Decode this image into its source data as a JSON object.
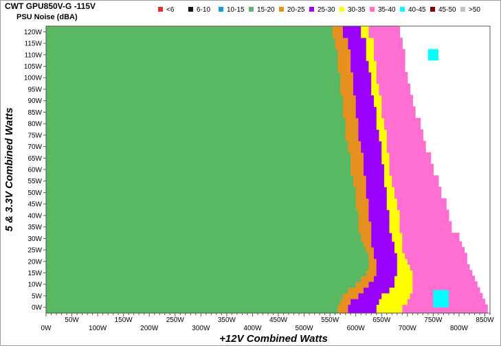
{
  "header": {
    "title": "CWT GPU850V-G -115V",
    "subtitle": "PSU Noise (dBA)"
  },
  "chart_data": {
    "type": "heatmap",
    "title": "CWT GPU850V-G -115V",
    "subtitle": "PSU Noise (dBA)",
    "xlabel": "+12V Combined Watts",
    "ylabel": "5 & 3.3V Combined Watts",
    "xlim": [
      0,
      860
    ],
    "ylim": [
      -2.5,
      122.5
    ],
    "x_ticks_top_row": [
      "0W",
      "100W",
      "200W",
      "300W",
      "400W",
      "500W",
      "600W",
      "700W",
      "800W"
    ],
    "x_ticks_bottom_row": [
      "50W",
      "150W",
      "250W",
      "350W",
      "450W",
      "550W",
      "650W",
      "750W",
      "850W"
    ],
    "x_tick_values_top_row": [
      0,
      100,
      200,
      300,
      400,
      500,
      600,
      700,
      800
    ],
    "x_tick_values_bottom_row": [
      50,
      150,
      250,
      350,
      450,
      550,
      650,
      750,
      850
    ],
    "y_ticks": [
      "0W",
      "5W",
      "10W",
      "15W",
      "20W",
      "25W",
      "30W",
      "35W",
      "40W",
      "45W",
      "50W",
      "55W",
      "60W",
      "65W",
      "70W",
      "75W",
      "80W",
      "85W",
      "90W",
      "95W",
      "100W",
      "105W",
      "110W",
      "115W",
      "120W"
    ],
    "y_tick_values": [
      0,
      5,
      10,
      15,
      20,
      25,
      30,
      35,
      40,
      45,
      50,
      55,
      60,
      65,
      70,
      75,
      80,
      85,
      90,
      95,
      100,
      105,
      110,
      115,
      120
    ],
    "legend": {
      "placement": "top-right",
      "items": [
        {
          "label": "<6",
          "color": "#e03030"
        },
        {
          "label": "6-10",
          "color": "#111111"
        },
        {
          "label": "10-15",
          "color": "#1a9ad6"
        },
        {
          "label": "15-20",
          "color": "#59b862"
        },
        {
          "label": "20-25",
          "color": "#e6901f"
        },
        {
          "label": "25-30",
          "color": "#9a00ff"
        },
        {
          "label": "30-35",
          "color": "#ffff00"
        },
        {
          "label": "35-40",
          "color": "#ff6fd2"
        },
        {
          "label": "40-45",
          "color": "#00ffff"
        },
        {
          "label": "45-50",
          "color": "#7a0000"
        },
        {
          "label": ">50",
          "color": "#c0c0c0"
        }
      ]
    },
    "y_levels": [
      0,
      2.5,
      5,
      7.5,
      10,
      12.5,
      15,
      17.5,
      20,
      22.5,
      25,
      27.5,
      30,
      35,
      40,
      45,
      50,
      55,
      60,
      65,
      70,
      75,
      80,
      85,
      90,
      95,
      100,
      105,
      110,
      115,
      120
    ],
    "boundaries_watts": {
      "levels": [
        "15-20",
        "20-25",
        "25-30",
        "30-35",
        "35-40"
      ],
      "edges": [
        [
          565,
          585,
          640,
          690,
          855
        ],
        [
          570,
          590,
          645,
          700,
          850
        ],
        [
          575,
          605,
          650,
          705,
          845
        ],
        [
          585,
          615,
          665,
          710,
          840
        ],
        [
          600,
          625,
          675,
          710,
          835
        ],
        [
          610,
          635,
          675,
          710,
          830
        ],
        [
          620,
          640,
          680,
          710,
          825
        ],
        [
          625,
          640,
          680,
          705,
          820
        ],
        [
          625,
          640,
          680,
          700,
          815
        ],
        [
          625,
          635,
          680,
          695,
          815
        ],
        [
          620,
          635,
          675,
          690,
          810
        ],
        [
          615,
          630,
          675,
          690,
          805
        ],
        [
          610,
          630,
          670,
          690,
          800
        ],
        [
          605,
          630,
          665,
          685,
          785
        ],
        [
          605,
          625,
          665,
          685,
          780
        ],
        [
          600,
          625,
          660,
          680,
          775
        ],
        [
          600,
          620,
          660,
          675,
          765
        ],
        [
          595,
          620,
          655,
          670,
          760
        ],
        [
          590,
          615,
          655,
          665,
          750
        ],
        [
          590,
          615,
          650,
          665,
          745
        ],
        [
          585,
          610,
          650,
          660,
          735
        ],
        [
          580,
          605,
          645,
          660,
          730
        ],
        [
          580,
          605,
          640,
          655,
          725
        ],
        [
          575,
          600,
          640,
          650,
          715
        ],
        [
          575,
          600,
          635,
          650,
          710
        ],
        [
          570,
          595,
          630,
          645,
          705
        ],
        [
          570,
          595,
          630,
          640,
          700
        ],
        [
          565,
          590,
          625,
          640,
          695
        ],
        [
          565,
          590,
          620,
          635,
          695
        ],
        [
          560,
          585,
          620,
          635,
          690
        ],
        [
          555,
          575,
          610,
          625,
          685
        ]
      ]
    },
    "spots": [
      {
        "label": "40-45",
        "x_range": [
          750,
          780
        ],
        "y_range": [
          0,
          7.5
        ]
      },
      {
        "label": "40-45",
        "x_range": [
          740,
          760
        ],
        "y_range": [
          107.5,
          112.5
        ]
      }
    ]
  }
}
